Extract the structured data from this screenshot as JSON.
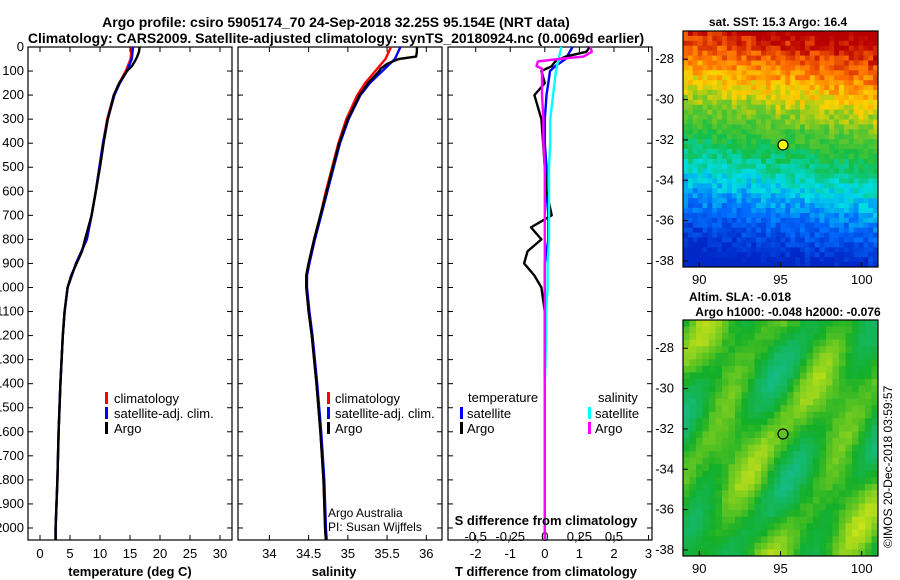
{
  "header": {
    "line1": "Argo profile: csiro 5905174_70 24-Sep-2018 32.25S 95.154E (NRT data)",
    "line2": "Climatology: CARS2009. Satellite-adjusted climatology: synTS_20180924.nc (0.0069d earlier)"
  },
  "credits": {
    "line1": "Argo Australia",
    "line2": "PI: Susan Wijffels"
  },
  "stamp": "©IMOS 20-Dec-2018 03:59:57",
  "chart_data": [
    {
      "type": "line",
      "title": "",
      "xlabel": "temperature (deg C)",
      "ylabel": "",
      "xlim": [
        -2,
        32
      ],
      "ylim": [
        2050,
        0
      ],
      "xticks": [
        0,
        5,
        10,
        15,
        20,
        25,
        30
      ],
      "yticks": [
        0,
        100,
        200,
        300,
        400,
        500,
        600,
        700,
        800,
        900,
        1000,
        1100,
        1200,
        1300,
        1400,
        1500,
        1600,
        1700,
        1800,
        1900,
        2000
      ],
      "legend": [
        "climatology",
        "satellite-adj. clim.",
        "Argo"
      ],
      "series": [
        {
          "name": "climatology",
          "color": "#ff0000",
          "depth": [
            0,
            50,
            100,
            150,
            200,
            300,
            400,
            500,
            600,
            700,
            800,
            900,
            1000,
            1100,
            1200,
            1400,
            1600,
            1800,
            2000,
            2050
          ],
          "values": [
            15.3,
            15.1,
            14.3,
            13.2,
            12.3,
            11.2,
            10.5,
            9.9,
            9.3,
            8.6,
            7.8,
            6.0,
            4.6,
            4.1,
            3.8,
            3.4,
            3.1,
            2.9,
            2.6,
            2.6
          ]
        },
        {
          "name": "satellite-adj. clim.",
          "color": "#0000ff",
          "depth": [
            0,
            50,
            100,
            150,
            200,
            300,
            400,
            500,
            600,
            700,
            800,
            900,
            1000,
            1100,
            1200,
            1400,
            1600,
            1800,
            2000,
            2050
          ],
          "values": [
            15.5,
            15.3,
            14.5,
            13.3,
            12.4,
            11.3,
            10.5,
            9.9,
            9.3,
            8.6,
            7.8,
            6.0,
            4.6,
            4.1,
            3.8,
            3.4,
            3.1,
            2.9,
            2.6,
            2.6
          ]
        },
        {
          "name": "Argo",
          "color": "#000000",
          "depth": [
            0,
            20,
            40,
            60,
            80,
            100,
            150,
            200,
            300,
            400,
            500,
            600,
            700,
            800,
            850,
            900,
            950,
            1000,
            1100,
            1200,
            1400,
            1600,
            1800,
            2000,
            2050
          ],
          "values": [
            16.6,
            16.5,
            16.2,
            15.8,
            15.3,
            14.5,
            13.2,
            12.3,
            11.3,
            10.6,
            10.0,
            9.3,
            8.6,
            7.5,
            7.0,
            6.1,
            5.2,
            4.6,
            4.1,
            3.8,
            3.4,
            3.1,
            2.9,
            2.6,
            2.6
          ]
        }
      ]
    },
    {
      "type": "line",
      "title": "",
      "xlabel": "salinity",
      "ylabel": "",
      "xlim": [
        33.6,
        36.2
      ],
      "ylim": [
        2050,
        0
      ],
      "xticks": [
        34,
        34.5,
        35,
        35.5,
        36
      ],
      "xticklabels": [
        "34",
        "34.5",
        "35",
        "35.5",
        "36"
      ],
      "legend": [
        "climatology",
        "satellite-adj. clim.",
        "Argo"
      ],
      "series": [
        {
          "name": "climatology",
          "color": "#ff0000",
          "depth": [
            0,
            50,
            100,
            150,
            200,
            300,
            400,
            500,
            600,
            700,
            800,
            900,
            950,
            1000,
            1100,
            1200,
            1400,
            1600,
            1800,
            2000,
            2050
          ],
          "values": [
            35.55,
            35.48,
            35.35,
            35.22,
            35.12,
            34.98,
            34.88,
            34.8,
            34.72,
            34.65,
            34.57,
            34.5,
            34.47,
            34.47,
            34.5,
            34.54,
            34.6,
            34.65,
            34.69,
            34.71,
            34.72
          ]
        },
        {
          "name": "satellite-adj. clim.",
          "color": "#0000ff",
          "depth": [
            0,
            50,
            100,
            150,
            200,
            300,
            400,
            500,
            600,
            700,
            800,
            900,
            950,
            1000,
            1100,
            1200,
            1400,
            1600,
            1800,
            2000,
            2050
          ],
          "values": [
            35.67,
            35.6,
            35.44,
            35.28,
            35.16,
            35.01,
            34.9,
            34.82,
            34.74,
            34.66,
            34.58,
            34.51,
            34.48,
            34.48,
            34.51,
            34.55,
            34.61,
            34.66,
            34.7,
            34.72,
            34.73
          ]
        },
        {
          "name": "Argo",
          "color": "#000000",
          "depth": [
            0,
            20,
            40,
            50,
            70,
            90,
            100,
            150,
            200,
            300,
            400,
            500,
            600,
            700,
            800,
            900,
            950,
            1000,
            1100,
            1200,
            1400,
            1600,
            1800,
            2000,
            2050
          ],
          "values": [
            35.88,
            35.88,
            35.87,
            35.65,
            35.5,
            35.42,
            35.4,
            35.26,
            35.15,
            35.0,
            34.89,
            34.81,
            34.73,
            34.65,
            34.57,
            34.5,
            34.47,
            34.47,
            34.5,
            34.54,
            34.6,
            34.65,
            34.69,
            34.71,
            34.72
          ]
        }
      ]
    },
    {
      "type": "line",
      "title": "",
      "xlabel": "T difference from climatology",
      "xlabel_top": "S difference from climatology",
      "ylabel": "",
      "xlim": [
        -2.8,
        3.1
      ],
      "ylim": [
        2050,
        0
      ],
      "xticks": [
        -2,
        -1,
        0,
        1,
        2,
        3
      ],
      "xticks_top": [
        -0.5,
        -0.25,
        0,
        0.25,
        0.5
      ],
      "xticklabels_top": [
        "-0,5",
        "-0,25",
        "0",
        "0,25",
        "0,5"
      ],
      "legend_title_left": "temperature",
      "legend_title_right": "salinity",
      "legend": [
        "satellite",
        "Argo",
        "satellite",
        "Argo"
      ],
      "series": [
        {
          "name": "satellite",
          "group": "temperature",
          "color": "#0000ff",
          "depth": [
            0,
            50,
            80,
            100,
            150,
            200,
            300,
            400,
            500,
            600,
            700,
            800,
            900,
            1000,
            1100,
            1200,
            1400,
            1600,
            1800,
            2000,
            2050
          ],
          "values": [
            0.8,
            0.6,
            0.3,
            0.15,
            0.1,
            0.05,
            0.0,
            0.0,
            0.05,
            0.05,
            0.1,
            0.1,
            0.0,
            0.0,
            0.0,
            0.0,
            0.0,
            0.0,
            0.0,
            0.0,
            0.0
          ]
        },
        {
          "name": "Argo",
          "group": "temperature",
          "color": "#000000",
          "depth": [
            0,
            20,
            40,
            60,
            80,
            100,
            150,
            200,
            300,
            400,
            500,
            600,
            700,
            750,
            800,
            850,
            900,
            950,
            1000,
            1100,
            1200,
            1400,
            1600,
            1800,
            2000,
            2050
          ],
          "values": [
            1.3,
            1.2,
            0.6,
            0.3,
            0.2,
            -0.1,
            0.0,
            -0.3,
            -0.1,
            -0.05,
            0.0,
            0.05,
            0.2,
            -0.4,
            -0.1,
            -0.5,
            -0.6,
            -0.3,
            -0.1,
            0.0,
            0.0,
            0.0,
            0.0,
            0.0,
            0.0,
            0.0
          ]
        },
        {
          "name": "satellite",
          "group": "salinity",
          "color": "#00ffff",
          "depth": [
            0,
            50,
            100,
            200,
            300,
            400,
            500,
            600,
            700,
            800,
            900,
            1000,
            1100,
            1200,
            1400,
            1600,
            1800,
            2000,
            2050
          ],
          "values": [
            0.12,
            0.1,
            0.08,
            0.06,
            0.04,
            0.04,
            0.03,
            0.03,
            0.03,
            0.03,
            0.02,
            0.02,
            0.01,
            0.01,
            0.0,
            0.0,
            0.0,
            0.0,
            0.0
          ]
        },
        {
          "name": "Argo",
          "group": "salinity",
          "color": "#ff00ff",
          "depth": [
            0,
            20,
            40,
            50,
            60,
            80,
            90,
            100,
            150,
            200,
            300,
            400,
            500,
            600,
            700,
            800,
            900,
            1000,
            1100,
            1200,
            1400,
            1600,
            1800,
            2000,
            2050
          ],
          "values": [
            0.33,
            0.34,
            0.28,
            0.1,
            -0.05,
            -0.06,
            -0.02,
            -0.02,
            -0.02,
            -0.02,
            -0.01,
            -0.01,
            0.0,
            0.0,
            0.0,
            0.0,
            0.0,
            0.0,
            0.0,
            0.0,
            0.0,
            0.0,
            0.0,
            0.0,
            0.0
          ]
        }
      ]
    },
    {
      "type": "heatmap",
      "title": "sat. SST: 15.3 Argo: 16.4",
      "xlim": [
        89,
        101
      ],
      "ylim": [
        -38.3,
        -26.6
      ],
      "xticks": [
        90,
        95,
        100
      ],
      "yticks": [
        -28,
        -30,
        -32,
        -34,
        -36,
        -38
      ],
      "marker": {
        "lon": 95.154,
        "lat": -32.25
      }
    },
    {
      "type": "heatmap",
      "title": "Altim. SLA: -0.018",
      "subtitle": "Argo h1000: -0.048 h2000: -0.076",
      "xlim": [
        89,
        101
      ],
      "ylim": [
        -38.3,
        -26.6
      ],
      "xticks": [
        90,
        95,
        100
      ],
      "yticks": [
        -28,
        -30,
        -32,
        -34,
        -36,
        -38
      ],
      "marker": {
        "lon": 95.154,
        "lat": -32.25
      }
    }
  ],
  "colors": {
    "climatology": "#ff0000",
    "satellite_adj": "#0000ff",
    "argo": "#000000",
    "sal_satellite": "#00ffff",
    "sal_argo": "#ff00ff",
    "marker_fill": "#ffff00"
  }
}
